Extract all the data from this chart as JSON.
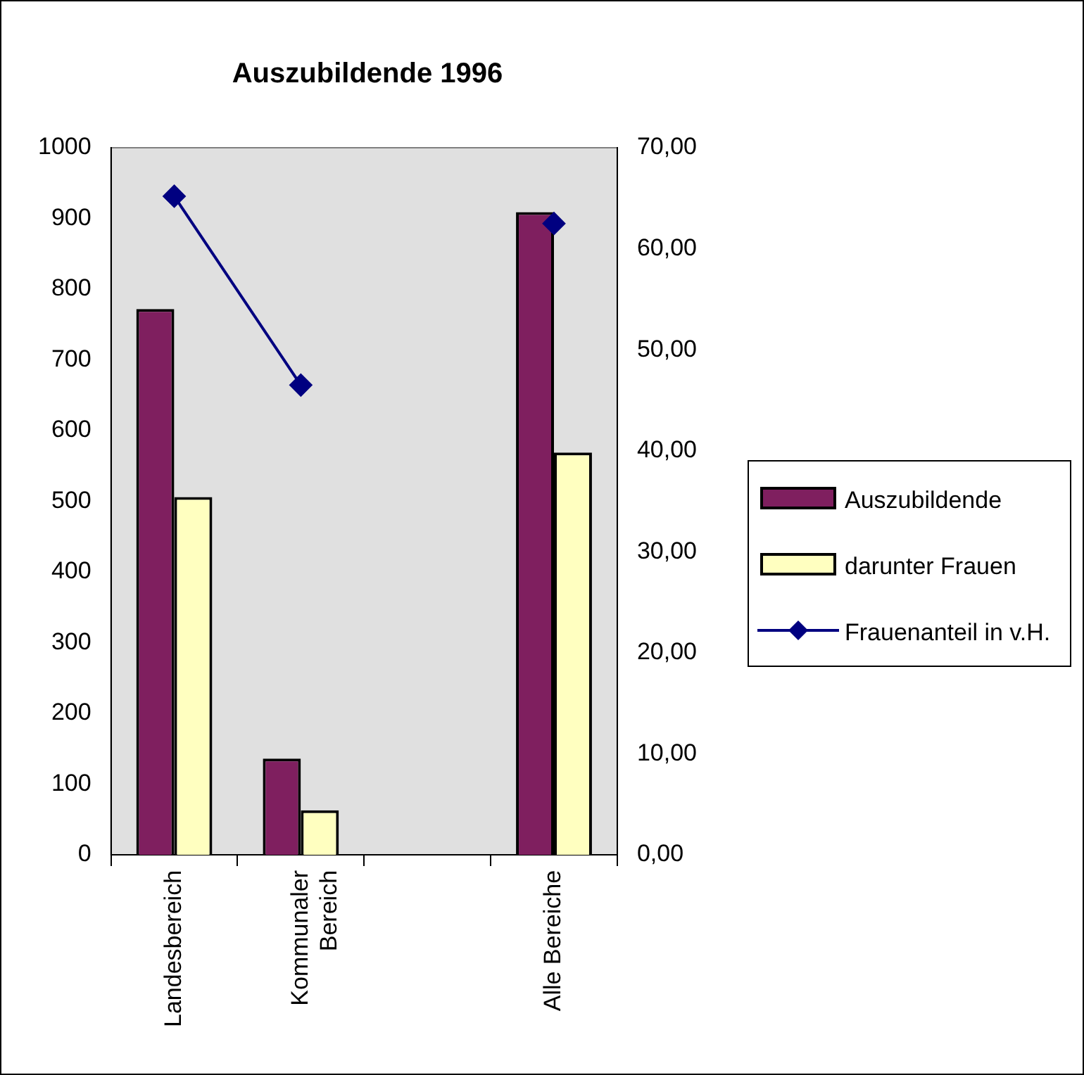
{
  "chart_data": {
    "type": "bar",
    "title": "Auszubildende 1996",
    "categories": [
      "Landesbereich",
      "Kommunaler Bereich",
      null,
      "Alle Bereiche"
    ],
    "series": [
      {
        "name": "Auszubildende",
        "color": "#7f1f5f",
        "values": [
          772,
          136,
          null,
          909
        ]
      },
      {
        "name": "darunter Frauen",
        "color": "#ffffc0",
        "values": [
          506,
          63,
          null,
          569
        ]
      },
      {
        "name": "Frauenanteil in v.H.",
        "type": "line",
        "axis": "y2",
        "color": "#000080",
        "marker": "diamond",
        "values": [
          65.2,
          46.5,
          null,
          62.5
        ]
      }
    ],
    "ylim": [
      0,
      1000
    ],
    "yticks": [
      0,
      100,
      200,
      300,
      400,
      500,
      600,
      700,
      800,
      900,
      1000
    ],
    "y2lim": [
      0,
      70
    ],
    "y2ticks": [
      {
        "value": 0,
        "label": "0,00"
      },
      {
        "value": 10,
        "label": "10,00"
      },
      {
        "value": 20,
        "label": "20,00"
      },
      {
        "value": 30,
        "label": "30,00"
      },
      {
        "value": 40,
        "label": "40,00"
      },
      {
        "value": 50,
        "label": "50,00"
      },
      {
        "value": 60,
        "label": "60,00"
      },
      {
        "value": 70,
        "label": "70,00"
      }
    ],
    "grid": false,
    "legend": "right"
  }
}
